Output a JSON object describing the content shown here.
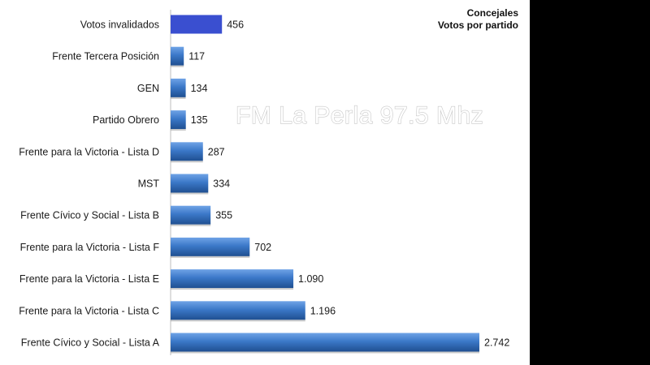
{
  "watermark": "FM La Perla 97.5 Mhz",
  "chart_data": {
    "type": "bar",
    "orientation": "horizontal",
    "title": "Concejales",
    "subtitle": "Votos por partido",
    "categories": [
      "Votos invalidados",
      "Frente Tercera Posición",
      "GEN",
      "Partido Obrero",
      "Frente para la Victoria - Lista D",
      "MST",
      "Frente Cívico y Social - Lista B",
      "Frente para la Victoria - Lista F",
      "Frente para la Victoria - Lista E",
      "Frente para la Victoria - Lista C",
      "Frente Cívico y Social - Lista A"
    ],
    "values": [
      456,
      117,
      134,
      135,
      287,
      334,
      355,
      702,
      1090,
      1196,
      2742
    ],
    "value_labels": [
      "456",
      "117",
      "134",
      "135",
      "287",
      "334",
      "355",
      "702",
      "1.090",
      "1.196",
      "2.742"
    ],
    "xlim": [
      0,
      2742
    ],
    "grid": false,
    "legend": "none",
    "colors": {
      "bar": "#3b78c8",
      "bar_light": "#6fa3e6",
      "bar_dark": "#1f4f91",
      "highlight_bar": "#3a4fd0",
      "background": "#ffffff",
      "side_panel": "#000000"
    }
  }
}
